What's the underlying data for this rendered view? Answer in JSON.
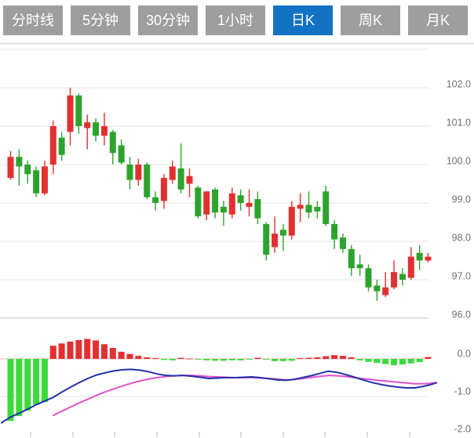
{
  "header": {
    "tabs": [
      {
        "label": "分时线",
        "active": false
      },
      {
        "label": "5分钟",
        "active": false
      },
      {
        "label": "30分钟",
        "active": false
      },
      {
        "label": "1小时",
        "active": false
      },
      {
        "label": "日K",
        "active": true
      },
      {
        "label": "周K",
        "active": false
      },
      {
        "label": "月K",
        "active": false
      }
    ],
    "inactive_tab_color": "#9e9e9e",
    "active_tab_color": "#1472c4",
    "tab_text_color": "#ffffff"
  },
  "chart_data": {
    "type": "candlestick",
    "title": "",
    "timeframe_selected": "日K",
    "legend_position": "none",
    "grid": true,
    "price_panel": {
      "ylim": [
        95.8,
        103.0
      ],
      "tick_values": [
        102.0,
        101.0,
        100.0,
        99.0,
        98.0,
        97.0,
        96.0
      ],
      "tick_labels": [
        "102.0",
        "101.0",
        "100.0",
        "99.0",
        "98.0",
        "97.0",
        "96.0"
      ],
      "unlabeled_gridline": 103.0
    },
    "macd_panel": {
      "ylim": [
        -2.1,
        0.35
      ],
      "tick_values": [
        0.0,
        -1.0,
        -2.0
      ],
      "tick_labels": [
        "0.0",
        "-1.0",
        "-2.0"
      ]
    },
    "candles_ohlc": [
      [
        99.65,
        100.35,
        99.6,
        100.2
      ],
      [
        100.2,
        100.4,
        99.45,
        99.95
      ],
      [
        100.0,
        100.1,
        99.5,
        99.75
      ],
      [
        99.85,
        99.95,
        99.15,
        99.25
      ],
      [
        99.25,
        100.1,
        99.2,
        99.95
      ],
      [
        100.0,
        101.15,
        99.75,
        101.0
      ],
      [
        100.7,
        100.85,
        100.1,
        100.25
      ],
      [
        100.85,
        102.0,
        100.5,
        101.8
      ],
      [
        101.8,
        101.85,
        100.8,
        101.0
      ],
      [
        100.95,
        101.3,
        100.4,
        101.1
      ],
      [
        101.1,
        101.2,
        100.6,
        100.75
      ],
      [
        100.75,
        101.35,
        100.5,
        101.0
      ],
      [
        100.85,
        100.9,
        100.0,
        100.3
      ],
      [
        100.5,
        100.65,
        100.0,
        100.05
      ],
      [
        100.0,
        100.2,
        99.35,
        99.6
      ],
      [
        99.6,
        100.15,
        99.45,
        100.0
      ],
      [
        100.0,
        100.05,
        99.1,
        99.15
      ],
      [
        99.15,
        99.3,
        98.8,
        99.0
      ],
      [
        99.05,
        99.75,
        98.85,
        99.65
      ],
      [
        99.6,
        100.1,
        99.5,
        99.95
      ],
      [
        99.9,
        100.55,
        99.25,
        99.35
      ],
      [
        99.5,
        99.9,
        99.15,
        99.7
      ],
      [
        99.4,
        99.45,
        98.6,
        98.65
      ],
      [
        98.7,
        99.3,
        98.55,
        99.3
      ],
      [
        99.35,
        99.4,
        98.6,
        98.75
      ],
      [
        98.9,
        99.05,
        98.4,
        98.75
      ],
      [
        98.7,
        99.4,
        98.6,
        99.25
      ],
      [
        99.2,
        99.35,
        98.8,
        99.0
      ],
      [
        98.9,
        99.35,
        98.65,
        99.0
      ],
      [
        99.1,
        99.3,
        98.45,
        98.6
      ],
      [
        98.45,
        98.5,
        97.5,
        97.65
      ],
      [
        97.85,
        98.65,
        97.7,
        98.2
      ],
      [
        98.3,
        98.45,
        97.75,
        98.15
      ],
      [
        98.15,
        99.05,
        98.05,
        98.9
      ],
      [
        98.85,
        99.25,
        98.5,
        98.95
      ],
      [
        98.95,
        99.3,
        98.6,
        98.75
      ],
      [
        98.9,
        99.05,
        98.6,
        98.78
      ],
      [
        99.3,
        99.45,
        98.4,
        98.45
      ],
      [
        98.45,
        98.55,
        97.8,
        98.05
      ],
      [
        98.1,
        98.2,
        97.7,
        97.8
      ],
      [
        97.8,
        97.9,
        97.1,
        97.3
      ],
      [
        97.4,
        97.65,
        97.1,
        97.3
      ],
      [
        97.3,
        97.4,
        96.7,
        96.8
      ],
      [
        96.85,
        97.0,
        96.45,
        96.7
      ],
      [
        96.6,
        97.2,
        96.55,
        96.8
      ],
      [
        96.8,
        97.5,
        96.75,
        97.2
      ],
      [
        97.15,
        97.3,
        96.85,
        97.0
      ],
      [
        97.05,
        97.85,
        97.0,
        97.6
      ],
      [
        97.7,
        97.9,
        97.25,
        97.5
      ],
      [
        97.5,
        97.7,
        97.45,
        97.6
      ]
    ],
    "macd_histogram": [
      -1.65,
      -1.52,
      -1.38,
      -1.22,
      -1.15,
      0.35,
      0.41,
      0.46,
      0.5,
      0.53,
      0.49,
      0.39,
      0.29,
      0.19,
      0.13,
      0.08,
      0.04,
      0.02,
      -0.03,
      -0.04,
      0.03,
      0.01,
      -0.02,
      -0.04,
      -0.05,
      -0.05,
      -0.04,
      -0.04,
      -0.01,
      0.03,
      -0.02,
      -0.06,
      -0.06,
      -0.05,
      0.02,
      0.03,
      0.04,
      0.07,
      0.1,
      0.08,
      0.04,
      -0.04,
      -0.08,
      -0.11,
      -0.14,
      -0.17,
      -0.15,
      -0.12,
      -0.09,
      0.05
    ],
    "dif_line_xv": [
      [
        2,
        -1.7
      ],
      [
        13,
        -1.55
      ],
      [
        24,
        -1.45
      ],
      [
        35,
        -1.34
      ],
      [
        46,
        -1.22
      ],
      [
        57,
        -1.12
      ],
      [
        68,
        -1.02
      ],
      [
        79,
        -0.88
      ],
      [
        90,
        -0.75
      ],
      [
        101,
        -0.63
      ],
      [
        112,
        -0.52
      ],
      [
        123,
        -0.43
      ],
      [
        134,
        -0.37
      ],
      [
        145,
        -0.32
      ],
      [
        156,
        -0.29
      ],
      [
        167,
        -0.28
      ],
      [
        178,
        -0.3
      ],
      [
        189,
        -0.34
      ],
      [
        200,
        -0.4
      ],
      [
        211,
        -0.44
      ],
      [
        222,
        -0.45
      ],
      [
        233,
        -0.44
      ],
      [
        244,
        -0.46
      ],
      [
        255,
        -0.49
      ],
      [
        266,
        -0.52
      ],
      [
        277,
        -0.51
      ],
      [
        288,
        -0.5
      ],
      [
        299,
        -0.5
      ],
      [
        310,
        -0.49
      ],
      [
        321,
        -0.48
      ],
      [
        332,
        -0.5
      ],
      [
        343,
        -0.53
      ],
      [
        354,
        -0.56
      ],
      [
        365,
        -0.57
      ],
      [
        376,
        -0.54
      ],
      [
        387,
        -0.49
      ],
      [
        398,
        -0.44
      ],
      [
        409,
        -0.38
      ],
      [
        418,
        -0.33
      ],
      [
        430,
        -0.36
      ],
      [
        441,
        -0.42
      ],
      [
        452,
        -0.49
      ],
      [
        463,
        -0.56
      ],
      [
        474,
        -0.63
      ],
      [
        485,
        -0.68
      ],
      [
        496,
        -0.72
      ],
      [
        507,
        -0.75
      ],
      [
        518,
        -0.77
      ],
      [
        529,
        -0.77
      ],
      [
        540,
        -0.73
      ],
      [
        548,
        -0.69
      ],
      [
        556,
        -0.64
      ]
    ],
    "dea_line_xv": [
      [
        68,
        -1.5
      ],
      [
        79,
        -1.39
      ],
      [
        90,
        -1.28
      ],
      [
        101,
        -1.17
      ],
      [
        112,
        -1.07
      ],
      [
        123,
        -0.97
      ],
      [
        134,
        -0.88
      ],
      [
        145,
        -0.8
      ],
      [
        156,
        -0.72
      ],
      [
        167,
        -0.65
      ],
      [
        178,
        -0.59
      ],
      [
        189,
        -0.54
      ],
      [
        200,
        -0.5
      ],
      [
        211,
        -0.47
      ],
      [
        222,
        -0.45
      ],
      [
        233,
        -0.44
      ],
      [
        244,
        -0.44
      ],
      [
        255,
        -0.45
      ],
      [
        266,
        -0.47
      ],
      [
        277,
        -0.48
      ],
      [
        288,
        -0.49
      ],
      [
        299,
        -0.5
      ],
      [
        310,
        -0.5
      ],
      [
        321,
        -0.5
      ],
      [
        332,
        -0.51
      ],
      [
        343,
        -0.52
      ],
      [
        354,
        -0.54
      ],
      [
        365,
        -0.56
      ],
      [
        376,
        -0.55
      ],
      [
        387,
        -0.52
      ],
      [
        398,
        -0.49
      ],
      [
        409,
        -0.46
      ],
      [
        420,
        -0.44
      ],
      [
        430,
        -0.45
      ],
      [
        441,
        -0.47
      ],
      [
        452,
        -0.5
      ],
      [
        463,
        -0.53
      ],
      [
        474,
        -0.55
      ],
      [
        485,
        -0.58
      ],
      [
        496,
        -0.6
      ],
      [
        507,
        -0.62
      ],
      [
        518,
        -0.64
      ],
      [
        529,
        -0.66
      ],
      [
        540,
        -0.66
      ],
      [
        548,
        -0.65
      ],
      [
        556,
        -0.63
      ]
    ],
    "colors": {
      "up_candle": "#e23030",
      "down_candle": "#2da32d",
      "hist_positive": "#e23030",
      "hist_negative": "#3bdb3b",
      "dif_line": "#2331a8",
      "dea_line": "#e052cc",
      "gridline": "#e3e3e3",
      "zero_line": "#efb4b4",
      "axis_label": "#6f6f6f",
      "tick_mark": "#b9b9b9",
      "header_divider": "#e0e0e0"
    }
  }
}
